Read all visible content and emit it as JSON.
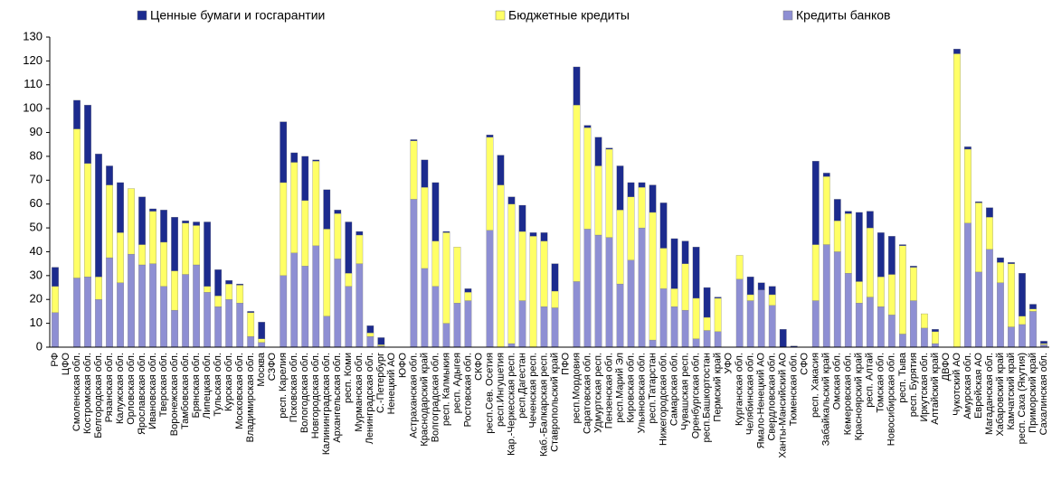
{
  "chart_data": {
    "type": "stacked_bar",
    "categories": [
      "РФ",
      "ЦФО",
      "Смоленская обл.",
      "Костромская обл.",
      "Белгородская обл.",
      "Рязанская обл.",
      "Калужская обл.",
      "Орловская обл.",
      "Ярославская обл.",
      "Ивановская обл.",
      "Тверская обл.",
      "Воронежская обл.",
      "Тамбовская обл.",
      "Брянская обл.",
      "Липецкая обл.",
      "Тульская обл.",
      "Курская обл.",
      "Московская обл.",
      "Владимирская обл.",
      "Москва",
      "СЗФО",
      "респ. Карелия",
      "Псковская обл.",
      "Вологодская обл.",
      "Новгородская обл.",
      "Калининградская обл.",
      "Архангельская обл.",
      "респ. Коми",
      "Мурманская обл.",
      "Ленинградская обл.",
      "С.-Петербург",
      "Ненецкий АО",
      "ЮФО",
      "Астраханская обл.",
      "Краснодарский край",
      "Волгоградская обл.",
      "респ. Калмыкия",
      "респ. Адыгея",
      "Ростовская обл.",
      "СКФО",
      "респ.Сев. Осетия",
      "респ.Ингушетия",
      "Кар.-Черкесская респ.",
      "респ.Дагестан",
      "Чеченская респ.",
      "Каб.-Балкарская респ.",
      "Ставропольский край",
      "ПФО",
      "респ.Мордовия",
      "Саратовская обл.",
      "Удмуртская респ.",
      "Пензенская обл.",
      "респ.Марий Эл",
      "Кировская обл.",
      "Ульяновская обл.",
      "респ.Татарстан",
      "Нижегородская обл.",
      "Самарская обл.",
      "Чувашская респ.",
      "Оренбургская обл.",
      "респ.Башкортостан",
      "Пермский край",
      "УФО",
      "Курганская обл.",
      "Челябинская обл.",
      "Ямало-Ненецкий АО",
      "Свердловская обл.",
      "Ханты-Мансийский АО",
      "Тюменская обл.",
      "СФО",
      "респ. Хакасия",
      "Забайкальский край",
      "Омская обл.",
      "Кемеровская обл.",
      "Красноярский край",
      "респ. Алтай",
      "Томская обл.",
      "Новосибирская обл.",
      "респ. Тыва",
      "респ. Бурятия",
      "Иркутская обл.",
      "Алтайский край",
      "ДВФО",
      "Чукотский АО",
      "Амурская обл.",
      "Еврейская АО",
      "Магаданская обл.",
      "Хабаровский край",
      "Камчатский край",
      "респ. Саха (Якутия)",
      "Приморский край",
      "Сахалинская обл."
    ],
    "series": [
      {
        "name": "Кредиты банков",
        "color": "#8e8fd3",
        "values": [
          14.5,
          0,
          29,
          29.5,
          20,
          37.5,
          27,
          39,
          34.5,
          35,
          25.5,
          15.5,
          30.5,
          34.5,
          23,
          17,
          20,
          18.5,
          4.5,
          2,
          0,
          30,
          39.5,
          34,
          42.5,
          13,
          37,
          25.5,
          35,
          4.5,
          0.5,
          0,
          0,
          62,
          33,
          25.5,
          10,
          18.5,
          19.5,
          0,
          49,
          0,
          1.5,
          19.5,
          0,
          17,
          16.5,
          0,
          27.5,
          49.5,
          47,
          46,
          26.5,
          36.5,
          50,
          3,
          24.5,
          17,
          15.5,
          3.5,
          7,
          6.5,
          0,
          28.5,
          19.5,
          24,
          17.5,
          0,
          0,
          0,
          19.5,
          43,
          40,
          31,
          18.5,
          21,
          17,
          13.5,
          5.5,
          19.5,
          8,
          1.5,
          0,
          0,
          52,
          31.5,
          41,
          27,
          8.5,
          9.5,
          15,
          1
        ]
      },
      {
        "name": "Бюджетные кредиты",
        "color": "#ffff66",
        "values": [
          11,
          0,
          62.5,
          47.5,
          9.5,
          30.5,
          21,
          27.5,
          8.5,
          22,
          18.5,
          16.5,
          21.5,
          16.5,
          2.5,
          4.5,
          6.5,
          7.5,
          10,
          1.5,
          0,
          39,
          38,
          27.5,
          35.5,
          36.5,
          19,
          5.5,
          12,
          1.5,
          0.5,
          0,
          0,
          24.5,
          34,
          19,
          38,
          23.5,
          3.5,
          0,
          39,
          68,
          58.5,
          29,
          46.5,
          27.5,
          7,
          0,
          74,
          42.5,
          29,
          37,
          31,
          26.5,
          17,
          53.5,
          17,
          7.5,
          19.5,
          17,
          5.5,
          14,
          0,
          10,
          2.5,
          0,
          4.5,
          0,
          0,
          0,
          23.5,
          28.5,
          13,
          25,
          9,
          29,
          12.5,
          17,
          37,
          14,
          6,
          5,
          0,
          123,
          31,
          29,
          13.5,
          8.5,
          26.5,
          3.5,
          1,
          0.5
        ]
      },
      {
        "name": "Ценные бумаги и госгарантии",
        "color": "#1c2b8e",
        "values": [
          8,
          0,
          12,
          24.5,
          51.5,
          8,
          21,
          0,
          20,
          1,
          13.5,
          22.5,
          1,
          1.5,
          27,
          11,
          1.5,
          0.5,
          0.5,
          7,
          0,
          25.5,
          4,
          18.5,
          0.5,
          16.5,
          1.5,
          21.5,
          1.5,
          3,
          3,
          0,
          0,
          0.5,
          11.5,
          24.5,
          0.5,
          0,
          1.5,
          0,
          1,
          12.5,
          3,
          11,
          1.5,
          3.5,
          11.5,
          0,
          16,
          1,
          12,
          0.5,
          18.5,
          6,
          2,
          11.5,
          19,
          21,
          9.5,
          21.5,
          12.5,
          0.5,
          0,
          0,
          7.5,
          3,
          3.5,
          7.5,
          0.5,
          0,
          35,
          1.5,
          9,
          1,
          29,
          7,
          18.5,
          16,
          0.5,
          0.5,
          0,
          1,
          0,
          2,
          1,
          0.5,
          4,
          2,
          0.5,
          18,
          2,
          1
        ]
      }
    ],
    "ylim": [
      0,
      130
    ],
    "yticks": [
      0,
      10,
      20,
      30,
      40,
      50,
      60,
      70,
      80,
      90,
      100,
      110,
      120,
      130
    ],
    "grid": false
  }
}
